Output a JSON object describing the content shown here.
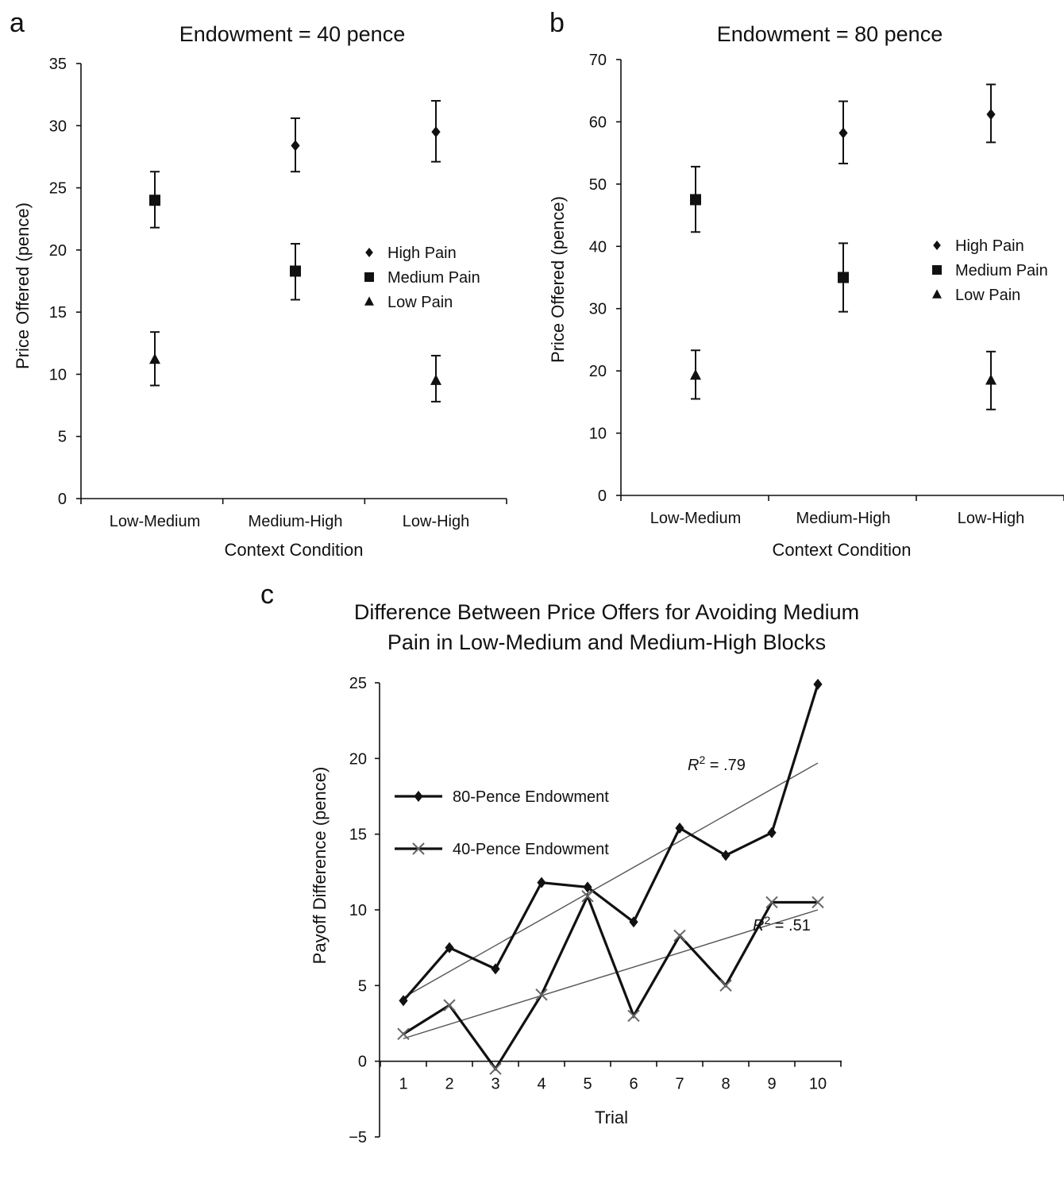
{
  "panels": {
    "a": {
      "letter": "a"
    },
    "b": {
      "letter": "b"
    },
    "c": {
      "letter": "c"
    }
  },
  "chart_data": [
    {
      "id": "a",
      "type": "scatter",
      "title": "Endowment = 40 pence",
      "xlabel": "Context Condition",
      "ylabel": "Price Offered (pence)",
      "categories": [
        "Low-Medium",
        "Medium-High",
        "Low-High"
      ],
      "ylim": [
        0,
        35
      ],
      "yticks": [
        0,
        5,
        10,
        15,
        20,
        25,
        30,
        35
      ],
      "grid": false,
      "legend_position": "right",
      "series": [
        {
          "name": "High Pain",
          "marker": "diamond",
          "values": [
            null,
            28.4,
            29.5
          ],
          "err_low": [
            null,
            26.3,
            27.1
          ],
          "err_high": [
            null,
            30.6,
            32.0
          ]
        },
        {
          "name": "Medium Pain",
          "marker": "square",
          "values": [
            24.0,
            18.3,
            null
          ],
          "err_low": [
            21.8,
            16.0,
            null
          ],
          "err_high": [
            26.3,
            20.5,
            null
          ]
        },
        {
          "name": "Low Pain",
          "marker": "triangle",
          "values": [
            11.2,
            null,
            9.5
          ],
          "err_low": [
            9.1,
            null,
            7.8
          ],
          "err_high": [
            13.4,
            null,
            11.5
          ]
        }
      ]
    },
    {
      "id": "b",
      "type": "scatter",
      "title": "Endowment = 80 pence",
      "xlabel": "Context Condition",
      "ylabel": "Price Offered (pence)",
      "categories": [
        "Low-Medium",
        "Medium-High",
        "Low-High"
      ],
      "ylim": [
        0,
        70
      ],
      "yticks": [
        0,
        10,
        20,
        30,
        40,
        50,
        60,
        70
      ],
      "grid": false,
      "legend_position": "right",
      "series": [
        {
          "name": "High Pain",
          "marker": "diamond",
          "values": [
            null,
            58.2,
            61.2
          ],
          "err_low": [
            null,
            53.3,
            56.7
          ],
          "err_high": [
            null,
            63.3,
            66.0
          ]
        },
        {
          "name": "Medium Pain",
          "marker": "square",
          "values": [
            47.5,
            35.0,
            null
          ],
          "err_low": [
            42.3,
            29.5,
            null
          ],
          "err_high": [
            52.8,
            40.5,
            null
          ]
        },
        {
          "name": "Low Pain",
          "marker": "triangle",
          "values": [
            19.3,
            null,
            18.5
          ],
          "err_low": [
            15.5,
            null,
            13.8
          ],
          "err_high": [
            23.3,
            null,
            23.1
          ]
        }
      ]
    },
    {
      "id": "c",
      "type": "line",
      "title": [
        "Difference Between Price Offers for Avoiding Medium",
        "Pain in Low-Medium and Medium-High Blocks"
      ],
      "xlabel": "Trial",
      "ylabel": "Payoff Difference (pence)",
      "x": [
        1,
        2,
        3,
        4,
        5,
        6,
        7,
        8,
        9,
        10
      ],
      "ylim": [
        -5,
        25
      ],
      "yticks": [
        -5,
        0,
        5,
        10,
        15,
        20,
        25
      ],
      "yticklabels": [
        "−5",
        "0",
        "5",
        "10",
        "15",
        "20",
        "25"
      ],
      "grid": false,
      "legend_position": "upper-left",
      "series": [
        {
          "name": "80-Pence Endowment",
          "marker": "diamond",
          "values": [
            4.0,
            7.5,
            6.1,
            11.8,
            11.5,
            9.2,
            15.4,
            13.6,
            15.1,
            24.9
          ]
        },
        {
          "name": "40-Pence Endowment",
          "marker": "x",
          "values": [
            1.8,
            3.7,
            -0.5,
            4.4,
            10.9,
            3.0,
            8.3,
            5.0,
            10.5,
            10.5
          ]
        }
      ],
      "trendlines": [
        {
          "series": "80-Pence Endowment",
          "from": [
            1,
            4.2
          ],
          "to": [
            10,
            19.7
          ],
          "label_prefix": "R",
          "label_sup": "2",
          "label_rest": " = .79"
        },
        {
          "series": "40-Pence Endowment",
          "from": [
            1,
            1.5
          ],
          "to": [
            10,
            10.0
          ],
          "label_prefix": "R",
          "label_sup": "2",
          "label_rest": " = .51"
        }
      ]
    }
  ]
}
